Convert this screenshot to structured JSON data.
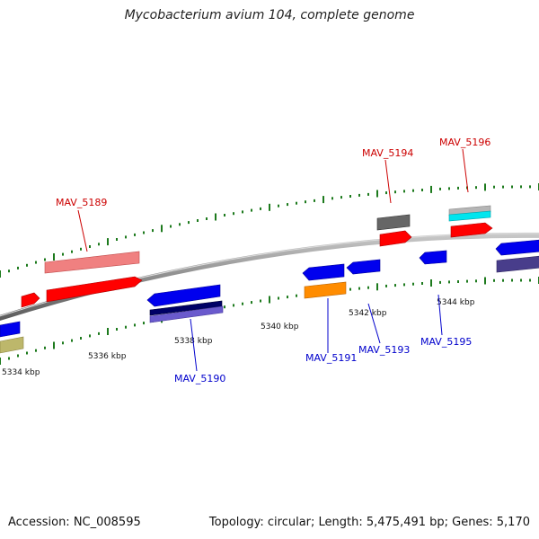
{
  "title": "Mycobacterium avium 104, complete genome",
  "footer": {
    "accession": "Accession: NC_008595",
    "stats": "Topology: circular; Length: 5,475,491 bp; Genes: 5,170"
  },
  "colors": {
    "backbone": "#8c8c8c",
    "tick": "#1d7a1d",
    "label_forward": "#cc0000",
    "label_reverse": "#0000cc"
  },
  "scale_labels": [
    "5334 kbp",
    "5336 kbp",
    "5338 kbp",
    "5340 kbp",
    "5342 kbp",
    "5344 kbp"
  ],
  "gene_labels": [
    {
      "name": "MAV_5189",
      "strand": "forward"
    },
    {
      "name": "MAV_5190",
      "strand": "reverse"
    },
    {
      "name": "MAV_5191",
      "strand": "reverse"
    },
    {
      "name": "MAV_5193",
      "strand": "reverse"
    },
    {
      "name": "MAV_5194",
      "strand": "forward"
    },
    {
      "name": "MAV_5195",
      "strand": "reverse"
    },
    {
      "name": "MAV_5196",
      "strand": "forward"
    }
  ],
  "feature_colors": {
    "red": "#ff0000",
    "pink": "#f08080",
    "blue": "#0000ee",
    "navy": "#000066",
    "lavender": "#6a5acd",
    "orange": "#ff8c00",
    "gray": "#666666",
    "silver": "#b5b5b5",
    "cyan": "#00e5ee",
    "khaki": "#bdb76b",
    "slate": "#483d8b"
  }
}
